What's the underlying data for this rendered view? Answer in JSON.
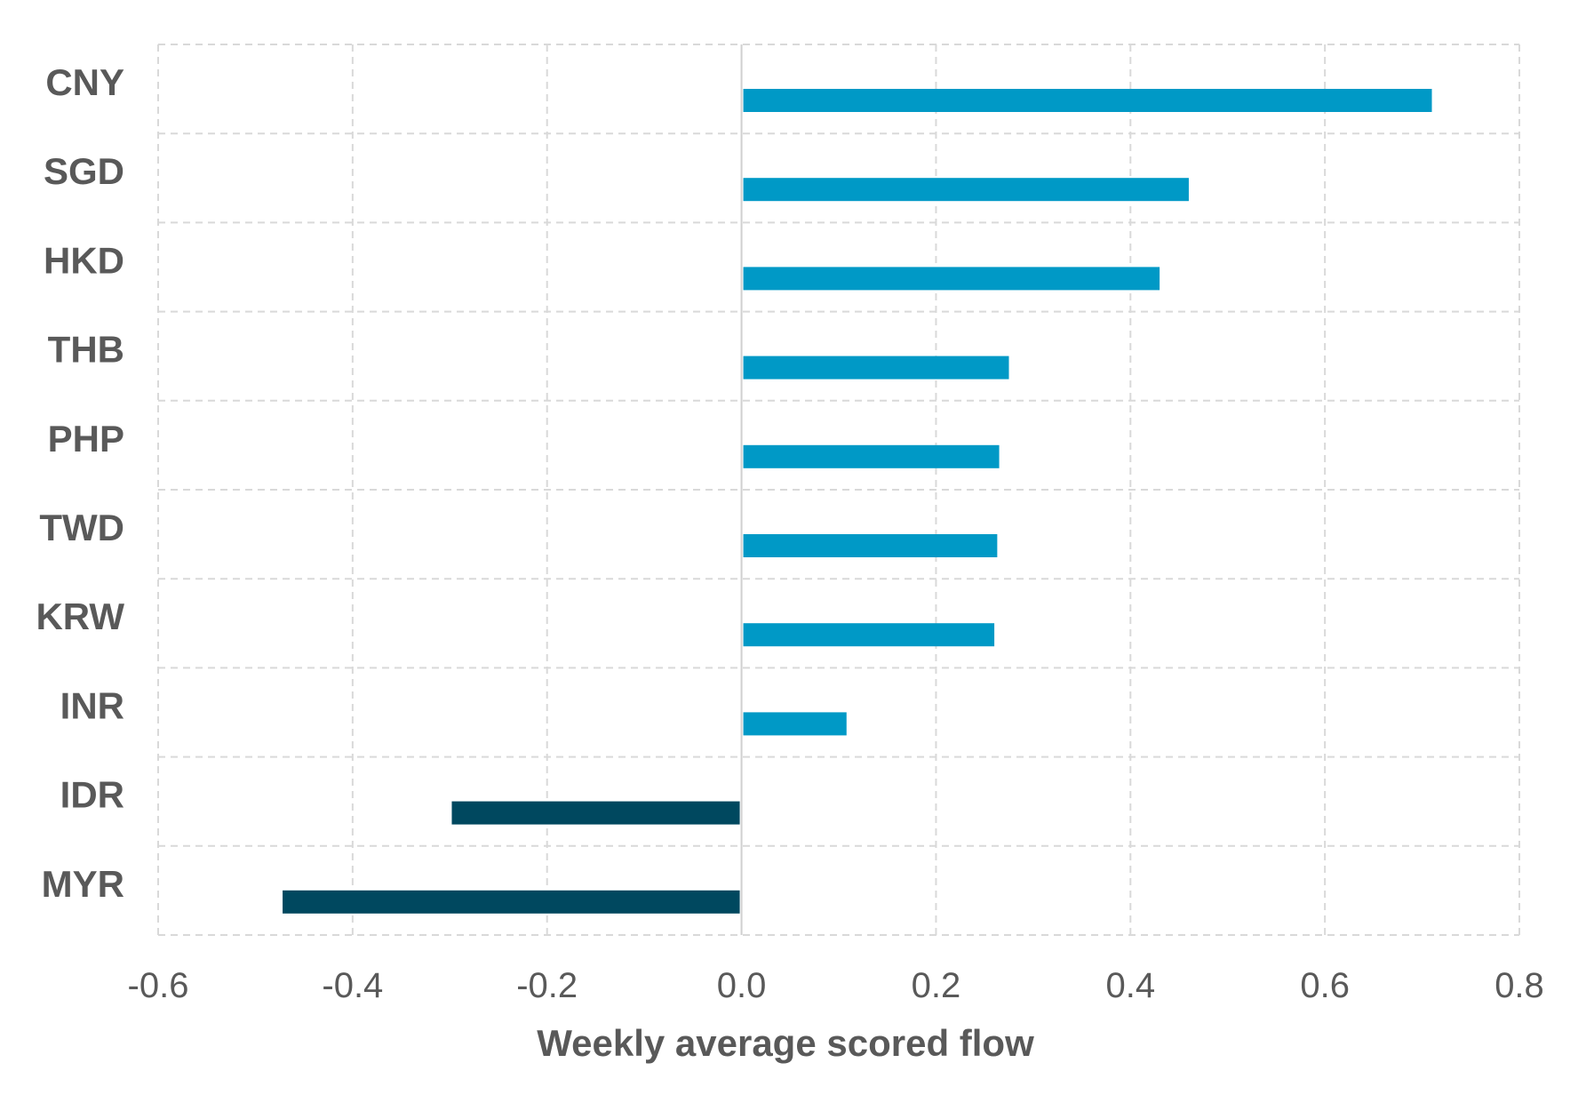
{
  "chart_data": {
    "type": "bar",
    "orientation": "horizontal",
    "title": "",
    "xlabel": "Weekly average scored flow",
    "ylabel": "",
    "categories": [
      "CNY",
      "SGD",
      "HKD",
      "THB",
      "PHP",
      "TWD",
      "KRW",
      "INR",
      "IDR",
      "MYR"
    ],
    "values": [
      0.71,
      0.46,
      0.43,
      0.275,
      0.265,
      0.263,
      0.26,
      0.108,
      -0.298,
      -0.472
    ],
    "xlim": [
      -0.6,
      0.8
    ],
    "x_ticks": [
      "-0.6",
      "-0.4",
      "-0.2",
      "0.0",
      "0.2",
      "0.4",
      "0.6",
      "0.8"
    ],
    "x_tick_values": [
      -0.6,
      -0.4,
      -0.2,
      0.0,
      0.2,
      0.4,
      0.6,
      0.8
    ],
    "grid": true,
    "legend": "none",
    "colors": {
      "positive": "#0099c6",
      "negative": "#00485f",
      "text": "#595959",
      "grid": "#d9d9d9"
    }
  }
}
